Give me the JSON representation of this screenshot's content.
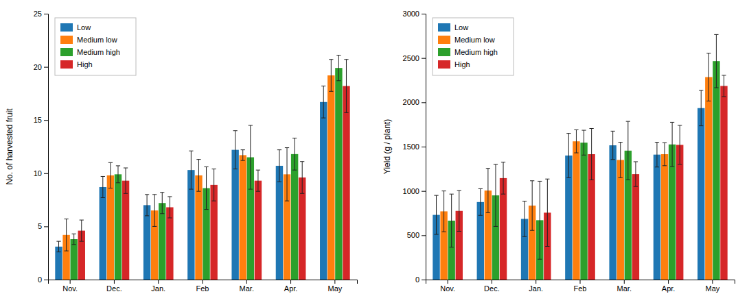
{
  "chart_data": [
    {
      "type": "bar",
      "categories": [
        "Nov.",
        "Dec.",
        "Jan.",
        "Feb",
        "Mar.",
        "Apr.",
        "May"
      ],
      "ylabel": "No. of harvested fruit",
      "ylim": [
        0,
        25
      ],
      "yticks": [
        0,
        5,
        10,
        15,
        20,
        25
      ],
      "legend": "upper left",
      "series": [
        {
          "name": "Low",
          "values": [
            3.1,
            8.7,
            7.0,
            10.3,
            12.2,
            10.7,
            16.7
          ],
          "errors": [
            0.5,
            1.0,
            1.0,
            1.8,
            1.8,
            1.5,
            1.5
          ]
        },
        {
          "name": "Medium low",
          "values": [
            4.2,
            9.8,
            6.5,
            9.8,
            11.7,
            9.9,
            19.2
          ],
          "errors": [
            1.5,
            1.2,
            1.5,
            1.5,
            0.5,
            2.5,
            1.5
          ]
        },
        {
          "name": "Medium high",
          "values": [
            3.8,
            9.9,
            7.2,
            8.6,
            11.5,
            11.8,
            19.9
          ],
          "errors": [
            0.5,
            0.8,
            1.0,
            2.0,
            3.0,
            1.5,
            1.2
          ]
        },
        {
          "name": "High",
          "values": [
            4.6,
            9.3,
            6.8,
            8.9,
            9.3,
            9.6,
            18.2
          ],
          "errors": [
            1.0,
            1.2,
            1.0,
            1.5,
            1.0,
            1.5,
            2.5
          ]
        }
      ]
    },
    {
      "type": "bar",
      "categories": [
        "Nov.",
        "Dec.",
        "Jan.",
        "Feb",
        "Mar.",
        "Apr.",
        "May"
      ],
      "ylabel": "Yield (g / plant)",
      "ylim": [
        0,
        3000
      ],
      "yticks": [
        0,
        500,
        1000,
        1500,
        2000,
        2500,
        3000
      ],
      "legend": "upper left",
      "series": [
        {
          "name": "Low",
          "values": [
            730,
            875,
            685,
            1400,
            1515,
            1410,
            1935
          ],
          "errors": [
            220,
            150,
            200,
            250,
            160,
            140,
            200
          ]
        },
        {
          "name": "Medium low",
          "values": [
            770,
            1005,
            835,
            1560,
            1350,
            1415,
            2285
          ],
          "errors": [
            230,
            250,
            280,
            130,
            200,
            130,
            270
          ]
        },
        {
          "name": "Medium high",
          "values": [
            665,
            950,
            670,
            1545,
            1455,
            1525,
            2465
          ],
          "errors": [
            300,
            350,
            440,
            140,
            330,
            250,
            300
          ]
        },
        {
          "name": "High",
          "values": [
            775,
            1145,
            755,
            1415,
            1190,
            1520,
            2185
          ],
          "errors": [
            230,
            180,
            380,
            290,
            140,
            220,
            120
          ]
        }
      ]
    }
  ]
}
